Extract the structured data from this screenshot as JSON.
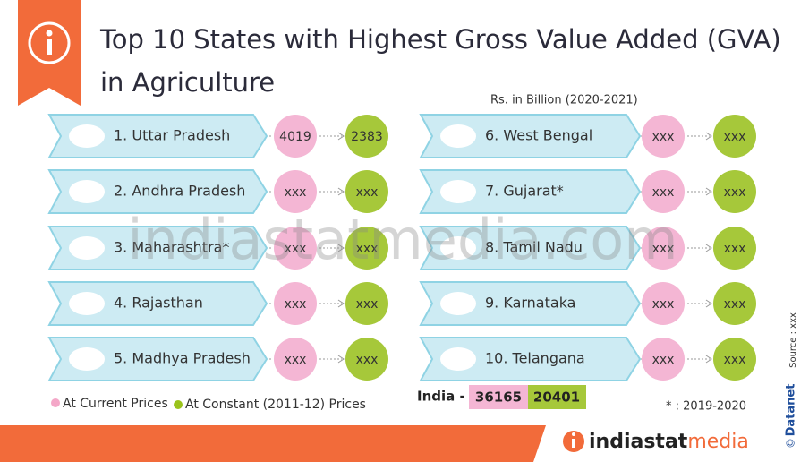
{
  "header": {
    "title_line1": "Top 10 States with Highest Gross Value Added (GVA)",
    "title_line2": "in Agriculture",
    "unit": "Rs. in Billion (2020-2021)"
  },
  "states": [
    {
      "name": "1. Uttar Pradesh",
      "current": "4019",
      "constant": "2383"
    },
    {
      "name": "2. Andhra Pradesh",
      "current": "xxx",
      "constant": "xxx"
    },
    {
      "name": "3. Maharashtra*",
      "current": "xxx",
      "constant": "xxx"
    },
    {
      "name": "4. Rajasthan",
      "current": "xxx",
      "constant": "xxx"
    },
    {
      "name": "5. Madhya Pradesh",
      "current": "xxx",
      "constant": "xxx"
    },
    {
      "name": "6. West Bengal",
      "current": "xxx",
      "constant": "xxx"
    },
    {
      "name": "7. Gujarat*",
      "current": "xxx",
      "constant": "xxx"
    },
    {
      "name": "8. Tamil Nadu",
      "current": "xxx",
      "constant": "xxx"
    },
    {
      "name": "9. Karnataka",
      "current": "xxx",
      "constant": "xxx"
    },
    {
      "name": "10. Telangana",
      "current": "xxx",
      "constant": "xxx"
    }
  ],
  "legend": {
    "current": "At Current Prices",
    "constant": "At Constant (2011-12) Prices"
  },
  "india": {
    "label": "India -",
    "current": "36165",
    "constant": "20401"
  },
  "footnote": "* : 2019-2020",
  "source": "Source : xxx",
  "datanet": "Datanet",
  "copyright": "©",
  "brand": {
    "part1": "indiastat",
    "part2": "media"
  },
  "watermark": "indiastatmedia.com"
}
